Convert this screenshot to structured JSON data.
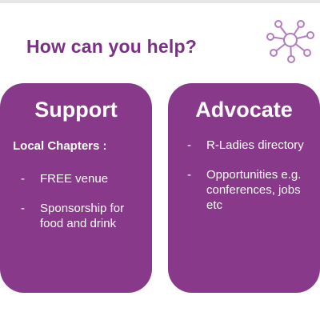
{
  "slide": {
    "title": "How can you help?",
    "accent_color": "#88398a",
    "title_color": "#7b2f86",
    "logo_icon": "network-hub-icon"
  },
  "support": {
    "heading": "Support",
    "subheading": "Local Chapters :",
    "bullets": [
      {
        "marker": "-",
        "text": "FREE venue"
      },
      {
        "marker": "-",
        "text": "Sponsorship for food and drink"
      }
    ]
  },
  "advocate": {
    "heading": "Advocate",
    "bullets": [
      {
        "marker": "-",
        "text": "R-Ladies directory"
      },
      {
        "marker": "-",
        "text": "Opportunities e.g. conferences, jobs etc"
      }
    ]
  }
}
